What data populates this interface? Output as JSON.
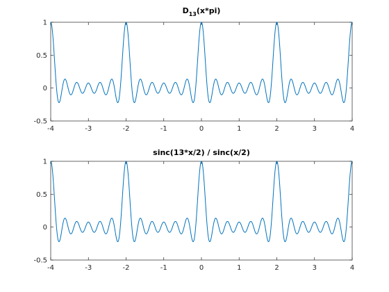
{
  "chart_data": [
    {
      "type": "line",
      "title": "D",
      "title_subscript": "13",
      "title_suffix": "(x*pi)",
      "xlabel": "",
      "ylabel": "",
      "xlim": [
        -4,
        4
      ],
      "ylim": [
        -0.5,
        1
      ],
      "xticks": [
        -4,
        -3,
        -2,
        -1,
        0,
        1,
        2,
        3,
        4
      ],
      "yticks": [
        -0.5,
        0,
        0.5,
        1
      ],
      "xtick_labels": [
        "-4",
        "-3",
        "-2",
        "-1",
        "0",
        "1",
        "2",
        "3",
        "4"
      ],
      "ytick_labels": [
        "-0.5",
        "0",
        "0.5",
        "1"
      ],
      "grid": false,
      "legend": "none",
      "series": [
        {
          "color": "#0072BD",
          "function": "dirichlet",
          "n": 13,
          "x_scale": "pi",
          "x_range": [
            -4,
            4
          ]
        }
      ]
    },
    {
      "type": "line",
      "title": "sinc(13*x/2) / sinc(x/2)",
      "xlabel": "",
      "ylabel": "",
      "xlim": [
        -4,
        4
      ],
      "ylim": [
        -0.5,
        1
      ],
      "xticks": [
        -4,
        -3,
        -2,
        -1,
        0,
        1,
        2,
        3,
        4
      ],
      "yticks": [
        -0.5,
        0,
        0.5,
        1
      ],
      "xtick_labels": [
        "-4",
        "-3",
        "-2",
        "-1",
        "0",
        "1",
        "2",
        "3",
        "4"
      ],
      "ytick_labels": [
        "-0.5",
        "0",
        "0.5",
        "1"
      ],
      "grid": false,
      "legend": "none",
      "series": [
        {
          "color": "#0072BD",
          "function": "sinc-ratio",
          "n": 13,
          "x_range": [
            -4,
            4
          ]
        }
      ]
    }
  ]
}
